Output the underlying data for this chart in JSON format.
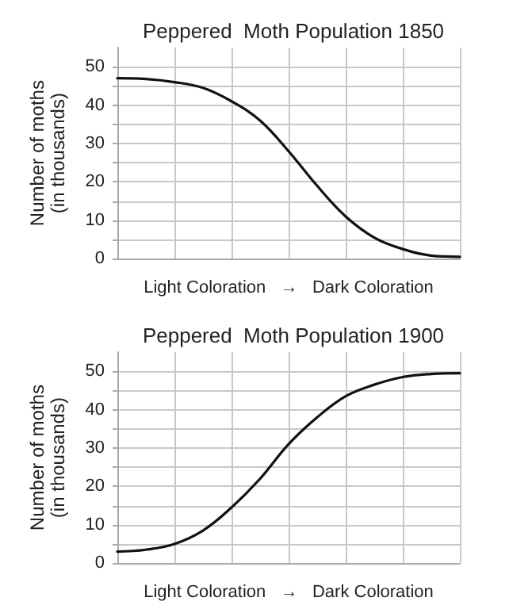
{
  "chart_data": [
    {
      "type": "line",
      "title": "Peppered  Moth Population 1850",
      "xlabel": "Light Coloration   →   Dark Coloration",
      "ylabel": "Number of moths\n(in thousands)",
      "categories": [
        null,
        null,
        null,
        null,
        null,
        null,
        null,
        null,
        null,
        null,
        null,
        null,
        null
      ],
      "series": [
        {
          "color": "#111111",
          "values": [
            47,
            46.8,
            46,
            44.5,
            41,
            36,
            28,
            19,
            11,
            5.5,
            2.5,
            0.8,
            0.5
          ]
        }
      ],
      "ylim": [
        0,
        55
      ],
      "yticks": [
        0,
        {
          "value": 5,
          "label": null
        },
        10,
        {
          "value": 15,
          "label": null
        },
        20,
        {
          "value": 25,
          "label": null
        },
        30,
        {
          "value": 35,
          "label": null
        },
        40,
        {
          "value": 45,
          "label": null
        },
        50
      ],
      "grid": true,
      "marker": "none",
      "line_style": "solid"
    },
    {
      "type": "line",
      "title": "Peppered  Moth Population 1900",
      "xlabel": "Light Coloration   →   Dark Coloration",
      "ylabel": "Number of moths\n(in thousands)",
      "categories": [
        null,
        null,
        null,
        null,
        null,
        null,
        null,
        null,
        null,
        null,
        null,
        null,
        null
      ],
      "series": [
        {
          "color": "#111111",
          "values": [
            3,
            3.5,
            5,
            8.5,
            14.5,
            22,
            31,
            38,
            43.5,
            46.5,
            48.5,
            49.3,
            49.5
          ]
        }
      ],
      "ylim": [
        0,
        55
      ],
      "yticks": [
        0,
        {
          "value": 5,
          "label": null
        },
        10,
        {
          "value": 15,
          "label": null
        },
        20,
        {
          "value": 25,
          "label": null
        },
        30,
        {
          "value": 35,
          "label": null
        },
        40,
        {
          "value": 45,
          "label": null
        },
        50
      ],
      "grid": true,
      "marker": "none",
      "line_style": "solid"
    }
  ]
}
